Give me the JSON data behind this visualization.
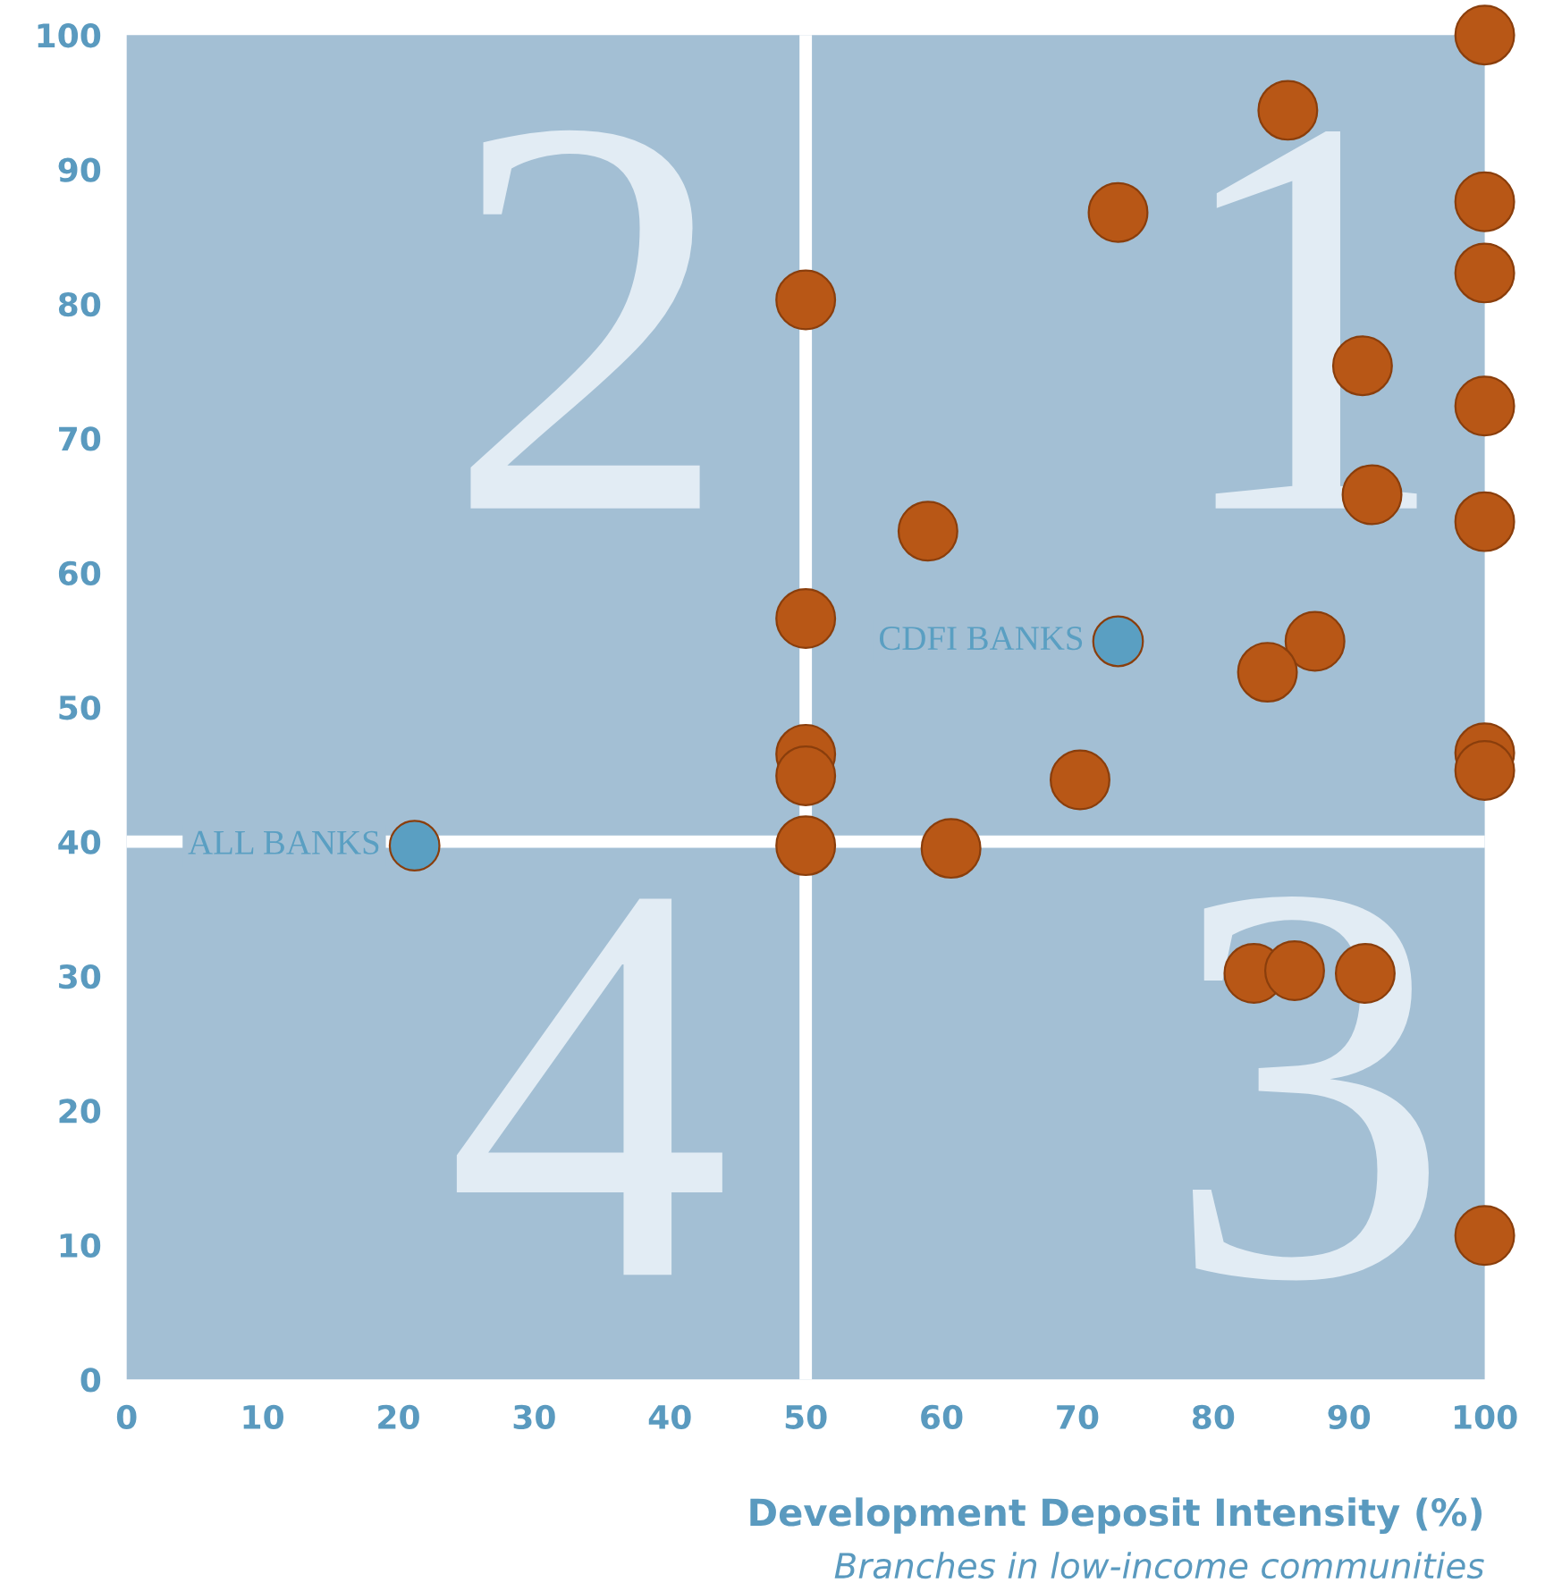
{
  "chart_data": {
    "type": "scatter",
    "xlabel": "Development Deposit Intensity (%)",
    "subtitle": "Branches in low-income communities",
    "annotations": [
      "2",
      "1",
      "4",
      "3"
    ],
    "xlim": [
      0,
      100
    ],
    "ylim": [
      0,
      100
    ],
    "xticks": [
      0,
      10,
      20,
      30,
      40,
      50,
      60,
      70,
      80,
      90,
      100
    ],
    "yticks": [
      0,
      10,
      20,
      30,
      40,
      50,
      60,
      70,
      80,
      90,
      100
    ],
    "ref_lines": [
      {
        "axis": "x",
        "value": 50,
        "color": "#ffffff"
      },
      {
        "axis": "y",
        "value": 40,
        "color": "#ffffff"
      }
    ],
    "grid": false,
    "legend": false,
    "marker": "circle",
    "series": [
      {
        "color": "#b85716",
        "x": [
          100,
          85.5,
          73,
          100,
          100,
          50,
          91,
          100,
          91.7,
          100,
          59,
          50,
          87.5,
          84,
          50,
          50,
          70.2,
          100,
          100,
          50,
          60.7,
          83,
          86,
          91.2,
          100
        ],
        "values": [
          100,
          94.4,
          86.8,
          87.6,
          82.3,
          80.3,
          75.4,
          72.4,
          65.8,
          63.8,
          63.1,
          56.6,
          54.9,
          52.6,
          46.5,
          44.9,
          44.6,
          46.6,
          45.3,
          39.7,
          39.5,
          30.2,
          30.4,
          30.2,
          10.7
        ]
      },
      {
        "name": "CDFI BANKS",
        "color": "#5a9fc2",
        "x": [
          73
        ],
        "values": [
          54.9
        ]
      },
      {
        "name": "ALL BANKS",
        "color": "#5a9fc2",
        "x": [
          21.2
        ],
        "values": [
          39.7
        ]
      }
    ]
  }
}
